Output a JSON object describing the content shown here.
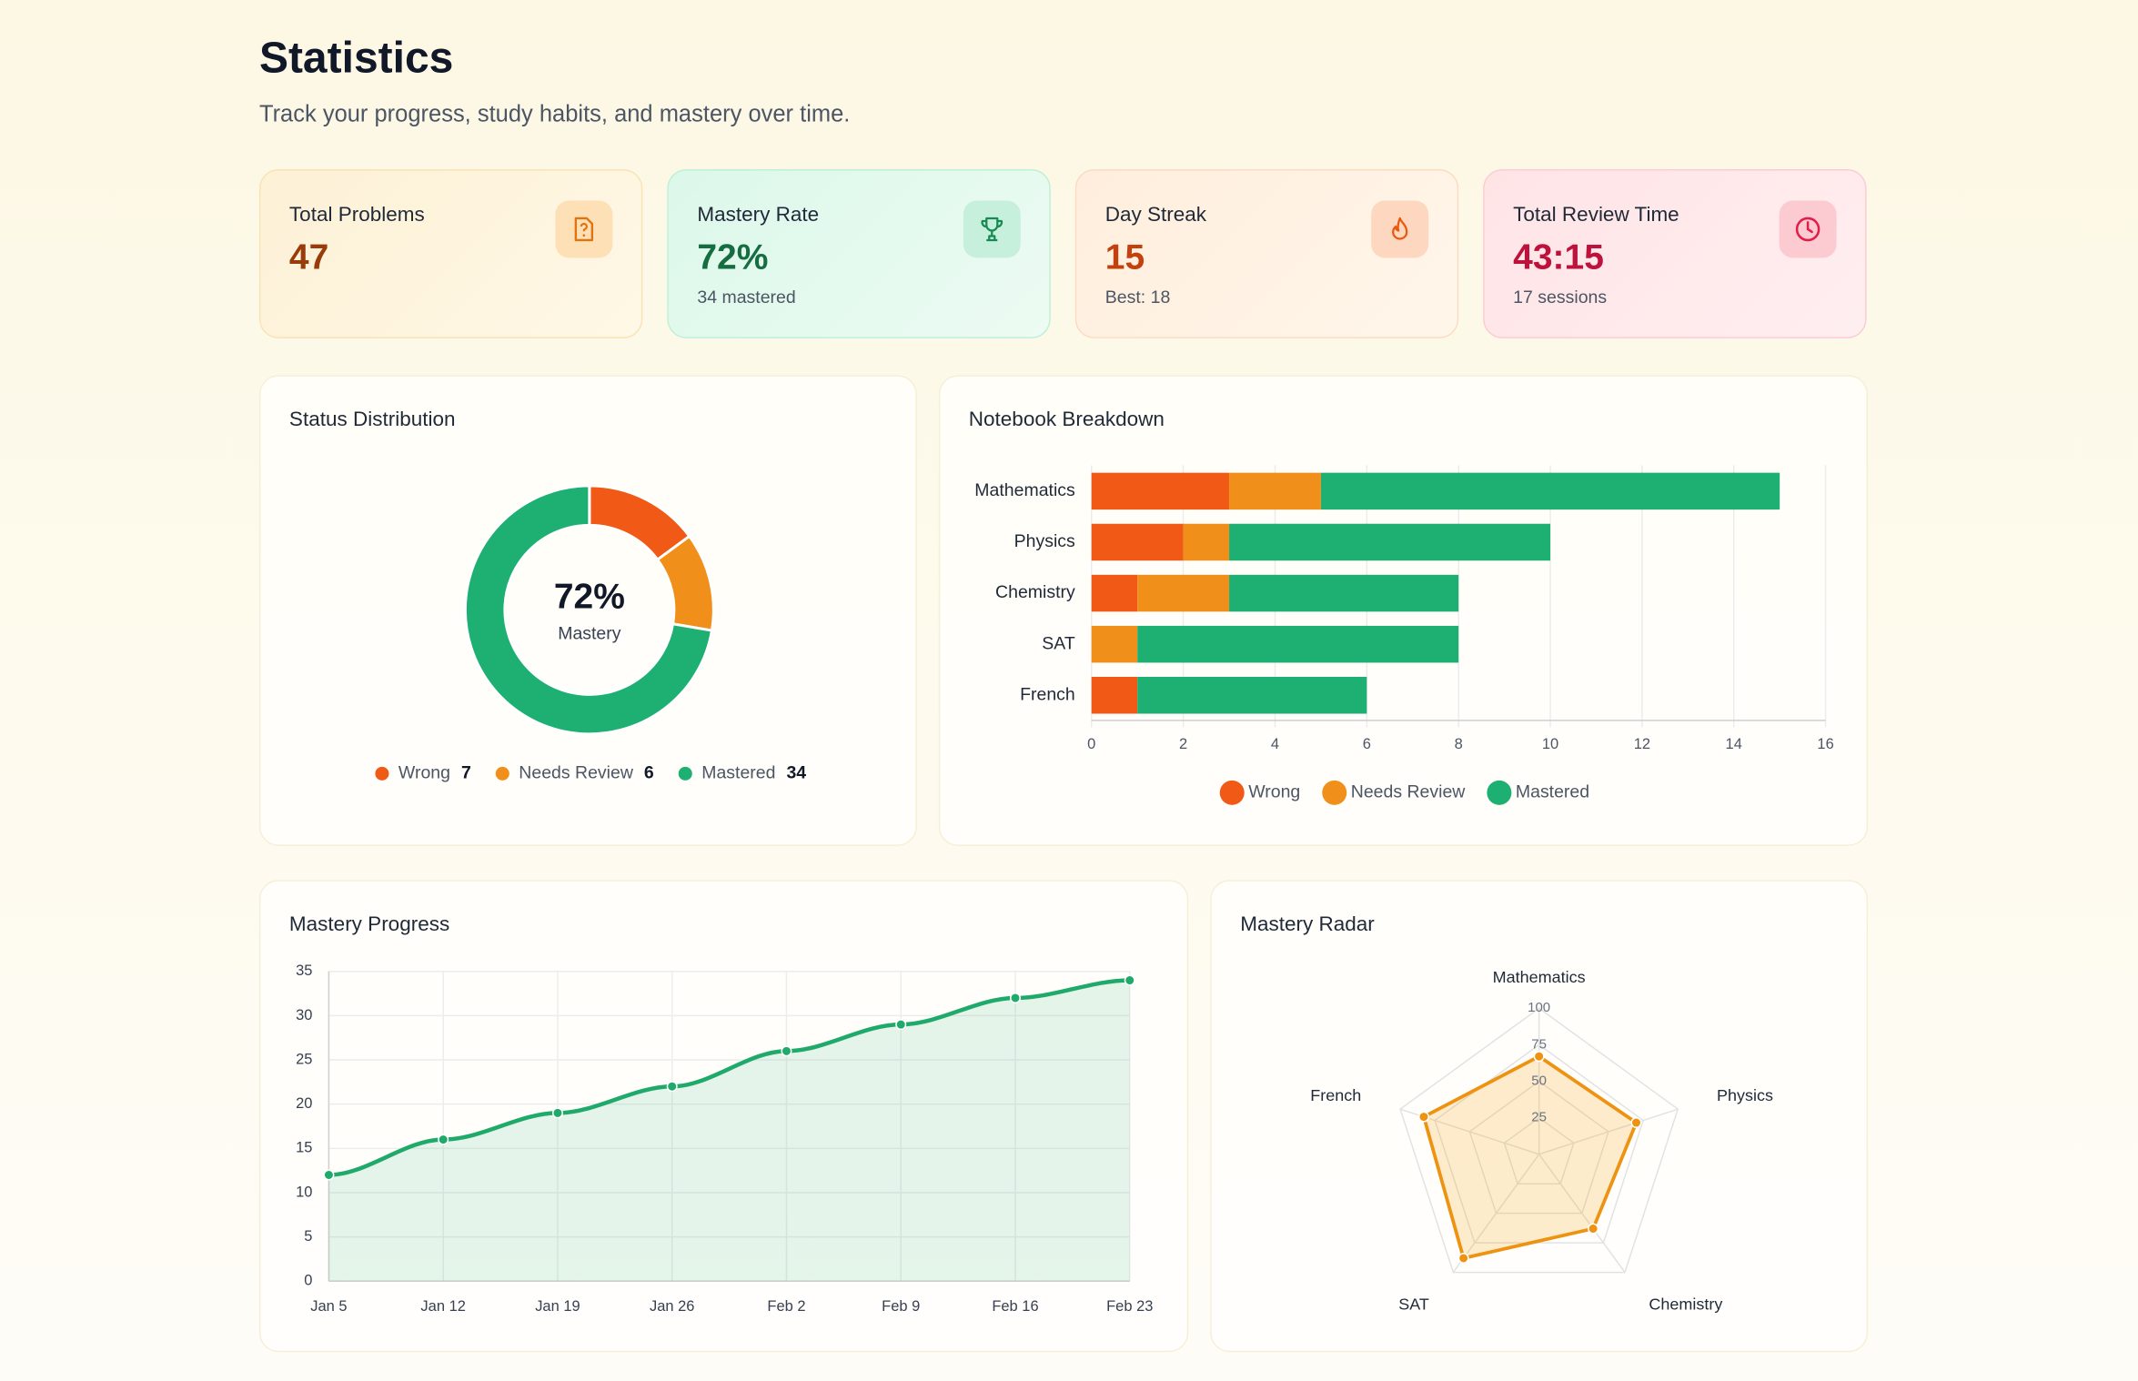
{
  "header": {
    "title": "Statistics",
    "subtitle": "Track your progress, study habits, and mastery over time."
  },
  "cards": [
    {
      "label": "Total Problems",
      "value": "47"
    },
    {
      "label": "Mastery Rate",
      "value": "72%",
      "sub": "34 mastered"
    },
    {
      "label": "Day Streak",
      "value": "15",
      "sub": "Best: 18"
    },
    {
      "label": "Total Review Time",
      "value": "43:15",
      "sub": "17 sessions"
    }
  ],
  "chart_data": [
    {
      "type": "pie",
      "title": "Status Distribution",
      "center_value": "72%",
      "center_label": "Mastery",
      "categories": [
        "Wrong",
        "Needs Review",
        "Mastered"
      ],
      "values": [
        7,
        6,
        34
      ],
      "colors": [
        "#f15a16",
        "#f0901a",
        "#1db072"
      ]
    },
    {
      "type": "bar",
      "title": "Notebook Breakdown",
      "orientation": "horizontal",
      "stacked": true,
      "categories": [
        "Mathematics",
        "Physics",
        "Chemistry",
        "SAT",
        "French"
      ],
      "series": [
        {
          "name": "Wrong",
          "color": "#f15a16",
          "values": [
            3,
            2,
            1,
            0,
            1
          ]
        },
        {
          "name": "Needs Review",
          "color": "#f0901a",
          "values": [
            2,
            1,
            2,
            1,
            0
          ]
        },
        {
          "name": "Mastered",
          "color": "#1db072",
          "values": [
            10,
            7,
            5,
            7,
            5
          ]
        }
      ],
      "xlim": [
        0,
        16
      ],
      "xticks": [
        0,
        2,
        4,
        6,
        8,
        10,
        12,
        14,
        16
      ],
      "grid": true
    },
    {
      "type": "line",
      "title": "Mastery Progress",
      "area": true,
      "color": "#1fa96a",
      "categories": [
        "Jan 5",
        "Jan 12",
        "Jan 19",
        "Jan 26",
        "Feb 2",
        "Feb 9",
        "Feb 16",
        "Feb 23"
      ],
      "values": [
        12,
        16,
        19,
        22,
        26,
        29,
        32,
        34
      ],
      "ylim": [
        0,
        35
      ],
      "yticks": [
        0,
        5,
        10,
        15,
        20,
        25,
        30,
        35
      ],
      "grid": true
    },
    {
      "type": "radar",
      "title": "Mastery Radar",
      "color": "#ee9212",
      "categories": [
        "Mathematics",
        "Physics",
        "Chemistry",
        "SAT",
        "French"
      ],
      "values": [
        67,
        70,
        63,
        88,
        83
      ],
      "rlim": [
        0,
        100
      ],
      "rticks": [
        25,
        50,
        75,
        100
      ]
    }
  ]
}
